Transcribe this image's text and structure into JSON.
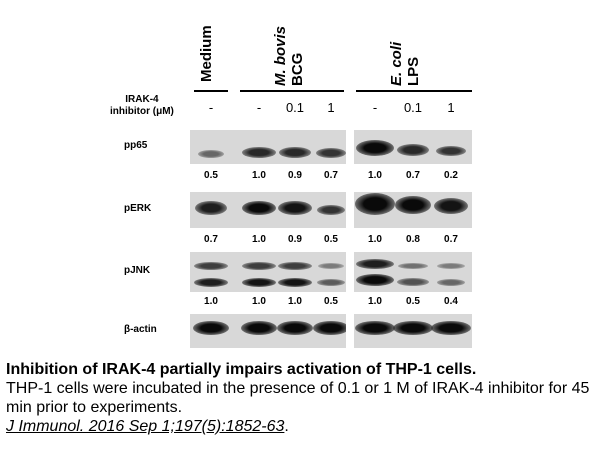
{
  "headers": {
    "medium": "Medium",
    "bcg_italic": "M. bovis",
    "bcg": "BCG",
    "lps_italic": "E. coli",
    "lps": "LPS"
  },
  "treatment": {
    "label_line1": "IRAK-4",
    "label_line2": "inhibitor (μM)",
    "lanes": [
      "-",
      "-",
      "0.1",
      "1",
      "-",
      "0.1",
      "1"
    ]
  },
  "blots": [
    {
      "name": "pp65",
      "values": [
        "0.5",
        "1.0",
        "0.9",
        "0.7",
        "1.0",
        "0.7",
        "0.2"
      ]
    },
    {
      "name": "pERK",
      "values": [
        "0.7",
        "1.0",
        "0.9",
        "0.5",
        "1.0",
        "0.8",
        "0.7"
      ]
    },
    {
      "name": "pJNK",
      "values": [
        "1.0",
        "1.0",
        "1.0",
        "0.5",
        "1.0",
        "0.5",
        "0.4"
      ]
    },
    {
      "name": "β-actin",
      "values": []
    }
  ],
  "caption": {
    "title": "Inhibition of IRAK-4 partially impairs activation of THP-1 cells.",
    "text": "THP-1 cells were incubated in the presence of 0.1 or 1 M of IRAK-4 inhibitor for 45 min prior to experiments.",
    "citation": "J Immunol. 2016 Sep 1;197(5):1852-63",
    "citation_end": "."
  }
}
